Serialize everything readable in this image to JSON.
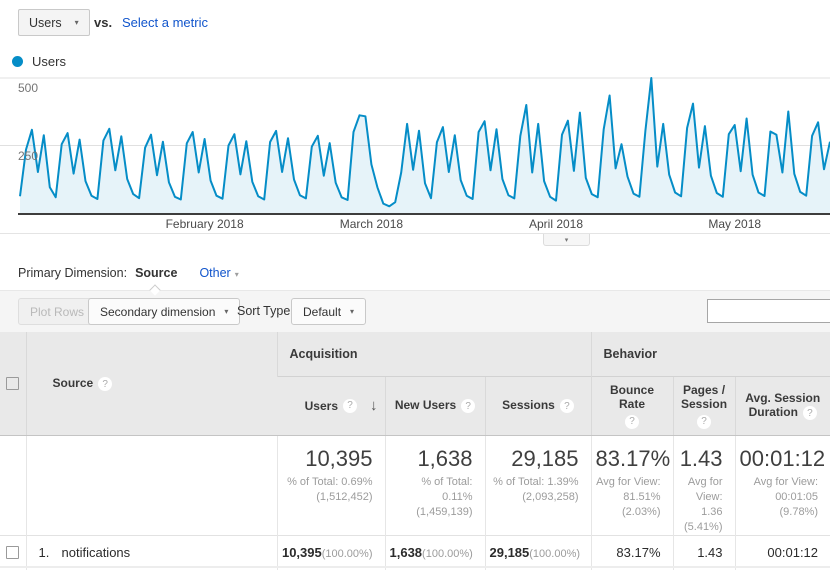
{
  "controls": {
    "metric_selector_value": "Users",
    "vs_label": "vs.",
    "select_metric_label": "Select a metric"
  },
  "legend": {
    "label": "Users"
  },
  "chart_data": {
    "type": "area",
    "series_name": "Users",
    "ylabel": "Users",
    "ylim": [
      0,
      500
    ],
    "yticks": [
      250,
      500
    ],
    "grid": "horizontal",
    "legend_position": "top-left",
    "x_months": [
      {
        "label": "February 2018",
        "day": 31
      },
      {
        "label": "March 2018",
        "day": 59
      },
      {
        "label": "April 2018",
        "day": 90
      },
      {
        "label": "May 2018",
        "day": 120
      }
    ],
    "values": [
      62,
      235,
      308,
      152,
      288,
      95,
      58,
      255,
      296,
      146,
      272,
      118,
      64,
      52,
      268,
      312,
      158,
      284,
      126,
      70,
      55,
      242,
      290,
      140,
      264,
      114,
      60,
      50,
      258,
      300,
      150,
      274,
      120,
      64,
      53,
      250,
      292,
      143,
      266,
      116,
      62,
      50,
      263,
      304,
      152,
      277,
      124,
      66,
      54,
      246,
      286,
      138,
      259,
      112,
      58,
      48,
      300,
      362,
      358,
      180,
      95,
      35,
      25,
      40,
      150,
      330,
      160,
      305,
      110,
      55,
      262,
      318,
      152,
      288,
      122,
      64,
      52,
      300,
      340,
      158,
      310,
      126,
      66,
      54,
      285,
      400,
      150,
      330,
      118,
      60,
      46,
      290,
      342,
      156,
      372,
      130,
      70,
      58,
      310,
      435,
      165,
      255,
      135,
      72,
      60,
      305,
      500,
      172,
      330,
      142,
      76,
      62,
      315,
      405,
      168,
      322,
      138,
      74,
      60,
      292,
      326,
      155,
      350,
      142,
      76,
      63,
      302,
      290,
      150,
      376,
      145,
      78,
      64,
      286,
      336,
      162,
      264
    ]
  },
  "primary_dimension": {
    "label": "Primary Dimension:",
    "selected": "Source",
    "other_label": "Other"
  },
  "toolbar": {
    "plot_rows_label": "Plot Rows",
    "secondary_dimension_label": "Secondary dimension",
    "sort_type_label": "Sort Type:",
    "sort_type_value": "Default",
    "search_value": ""
  },
  "icons": {
    "help": "?",
    "dropdown": "▾",
    "sort_desc": "↓",
    "collapse": "▾"
  },
  "table": {
    "group_acquisition": "Acquisition",
    "group_behavior": "Behavior",
    "col_source": "Source",
    "col_users": "Users",
    "col_new_users": "New Users",
    "col_sessions": "Sessions",
    "col_bounce": "Bounce Rate",
    "col_pages": "Pages / Session",
    "col_duration": "Avg. Session Duration",
    "summary": {
      "users_value": "10,395",
      "users_sub1": "% of Total: 0.69%",
      "users_sub2": "(1,512,452)",
      "new_users_value": "1,638",
      "new_users_sub1": "% of Total: 0.11%",
      "new_users_sub2": "(1,459,139)",
      "sessions_value": "29,185",
      "sessions_sub1": "% of Total: 1.39%",
      "sessions_sub2": "(2,093,258)",
      "bounce_value": "83.17%",
      "bounce_sub1": "Avg for View: 81.51%",
      "bounce_sub2": "(2.03%)",
      "pages_value": "1.43",
      "pages_sub1": "Avg for View: 1.36",
      "pages_sub2": "(5.41%)",
      "duration_value": "00:01:12",
      "duration_sub1": "Avg for View: 00:01:05",
      "duration_sub2": "(9.78%)"
    },
    "rows": [
      {
        "index": "1.",
        "source": "notifications",
        "users": "10,395",
        "users_pct": "(100.00%)",
        "new_users": "1,638",
        "new_users_pct": "(100.00%)",
        "sessions": "29,185",
        "sessions_pct": "(100.00%)",
        "bounce": "83.17%",
        "pages": "1.43",
        "duration": "00:01:12"
      }
    ]
  },
  "colors": {
    "line": "#058dc7",
    "fill_alpha": "rgba(5,141,199,0.10)",
    "link": "#1155cc"
  }
}
